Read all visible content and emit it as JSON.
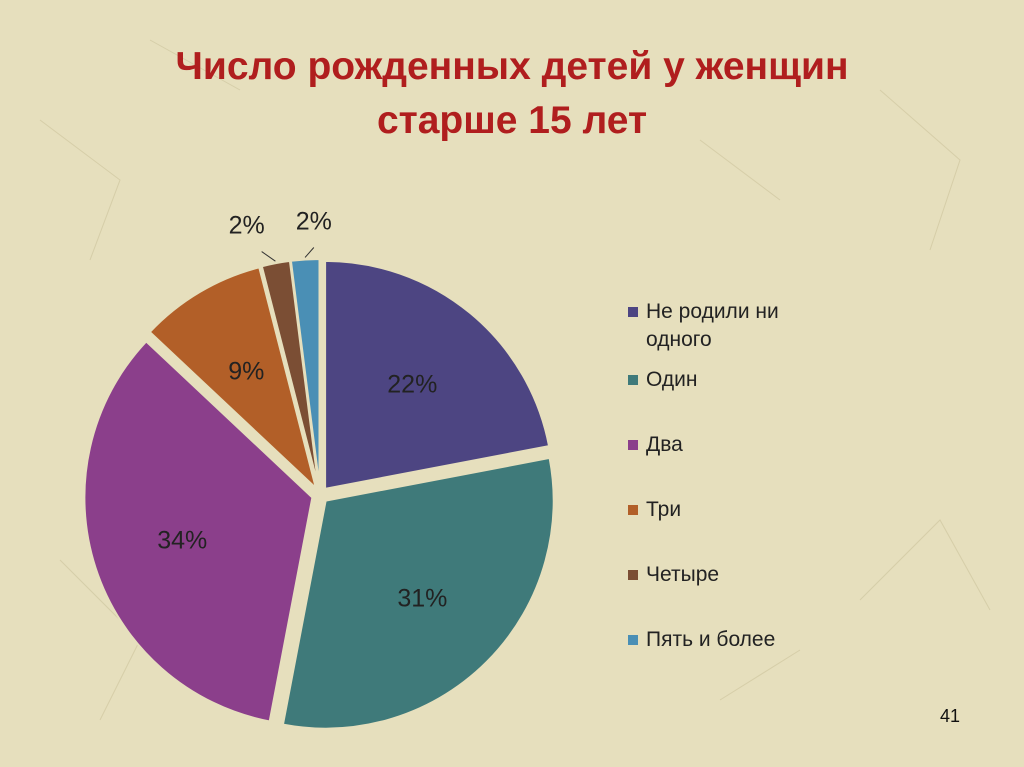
{
  "slide": {
    "title_line1": "Число рожденных детей у женщин",
    "title_line2": "старше 15 лет",
    "page_number": "41"
  },
  "colors": {
    "background": "#e6dfbd",
    "title": "#b01e1e"
  },
  "chart_data": {
    "type": "pie",
    "title": "Число рожденных детей у женщин старше 15 лет",
    "legend_position": "right",
    "categories": [
      "Не родили ни одного",
      "Один",
      "Два",
      "Три",
      "Четыре",
      "Пять и более"
    ],
    "values": [
      22,
      31,
      34,
      9,
      2,
      2
    ],
    "labels": [
      "22%",
      "31%",
      "34%",
      "9%",
      "2%",
      "2%"
    ],
    "colors": [
      "#4d4582",
      "#3f7a7a",
      "#8b3f8b",
      "#b25f28",
      "#7b4e34",
      "#4a8fb5"
    ],
    "exploded": true
  }
}
